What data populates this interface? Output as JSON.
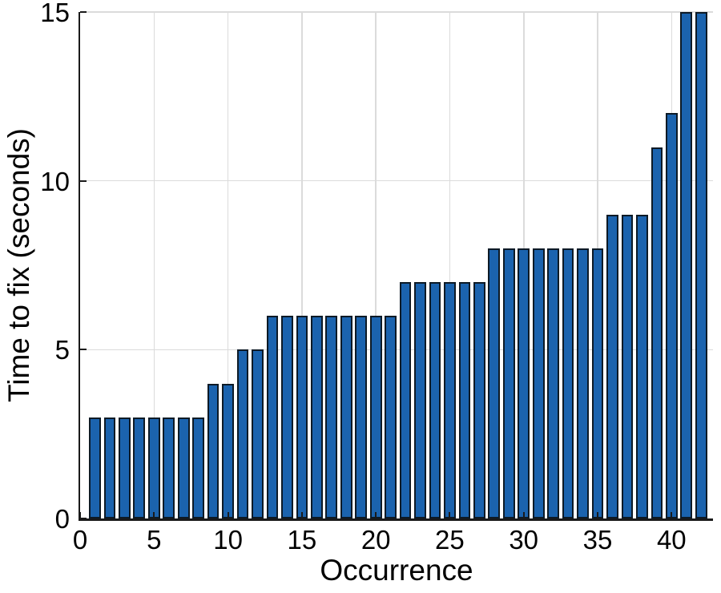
{
  "chart_data": {
    "type": "bar",
    "title": "",
    "xlabel": "Occurrence",
    "ylabel": "Time to fix (seconds)",
    "x": [
      1,
      2,
      3,
      4,
      5,
      6,
      7,
      8,
      9,
      10,
      11,
      12,
      13,
      14,
      15,
      16,
      17,
      18,
      19,
      20,
      21,
      22,
      23,
      24,
      25,
      26,
      27,
      28,
      29,
      30,
      31,
      32,
      33,
      34,
      35,
      36,
      37,
      38,
      39,
      40,
      41,
      42
    ],
    "values": [
      3,
      3,
      3,
      3,
      3,
      3,
      3,
      3,
      4,
      4,
      5,
      5,
      6,
      6,
      6,
      6,
      6,
      6,
      6,
      6,
      6,
      7,
      7,
      7,
      7,
      7,
      7,
      8,
      8,
      8,
      8,
      8,
      8,
      8,
      8,
      9,
      9,
      9,
      11,
      12,
      15,
      15
    ],
    "xticks": [
      0,
      5,
      10,
      15,
      20,
      25,
      30,
      35,
      40
    ],
    "yticks": [
      0,
      5,
      10,
      15
    ],
    "xlim": [
      0,
      42.8
    ],
    "ylim": [
      0,
      15
    ],
    "grid": true,
    "legend_position": "none",
    "bar_width_units": 0.8,
    "colors": {
      "bar_fill": "#1B63AE",
      "bar_edge": "#0D1A26",
      "grid": "#DBDBDB",
      "axis": "#1A1A1A",
      "text": "#000000",
      "background": "#FFFFFF"
    }
  }
}
